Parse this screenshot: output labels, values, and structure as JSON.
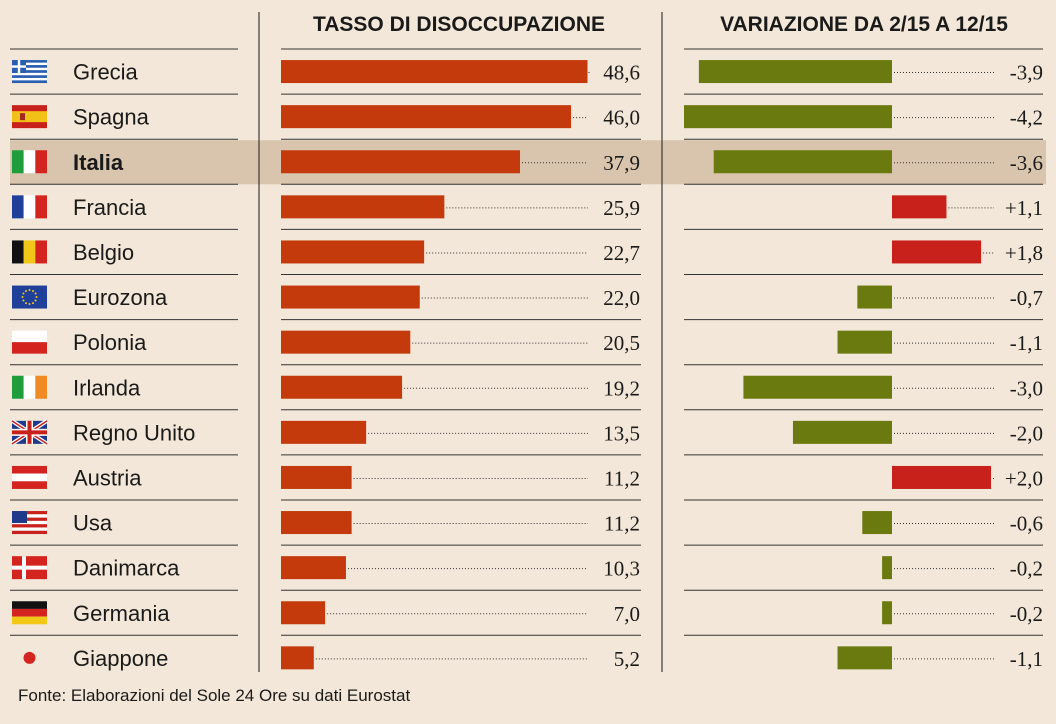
{
  "source": "Fonte: Elaborazioni del Sole 24 Ore su dati Eurostat",
  "colors": {
    "background": "#f3e7d9",
    "highlight_row": "#d9c5ad",
    "rate_bar": "#c43a0d",
    "change_negative": "#6b7a0f",
    "change_positive": "#c8211c"
  },
  "chart_data": [
    {
      "type": "bar",
      "title": "TASSO DI DISOCCUPAZIONE",
      "categories": [
        "Grecia",
        "Spagna",
        "Italia",
        "Francia",
        "Belgio",
        "Eurozona",
        "Polonia",
        "Irlanda",
        "Regno Unito",
        "Austria",
        "Usa",
        "Danimarca",
        "Germania",
        "Giappone"
      ],
      "values": [
        48.6,
        46.0,
        37.9,
        25.9,
        22.7,
        22.0,
        20.5,
        19.2,
        13.5,
        11.2,
        11.2,
        10.3,
        7.0,
        5.2
      ],
      "labels": [
        "48,6",
        "46,0",
        "37,9",
        "25,9",
        "22,7",
        "22,0",
        "20,5",
        "19,2",
        "13,5",
        "11,2",
        "11,2",
        "10,3",
        "7,0",
        "5,2"
      ],
      "highlight": "Italia",
      "xlim": [
        0,
        50
      ]
    },
    {
      "type": "bar",
      "title": "VARIAZIONE DA 2/15 A 12/15",
      "categories": [
        "Grecia",
        "Spagna",
        "Italia",
        "Francia",
        "Belgio",
        "Eurozona",
        "Polonia",
        "Irlanda",
        "Regno Unito",
        "Austria",
        "Usa",
        "Danimarca",
        "Germania",
        "Giappone"
      ],
      "values": [
        -3.9,
        -4.2,
        -3.6,
        1.1,
        1.8,
        -0.7,
        -1.1,
        -3.0,
        -2.0,
        2.0,
        -0.6,
        -0.2,
        -0.2,
        -1.1
      ],
      "labels": [
        "-3,9",
        "-4,2",
        "-3,6",
        "+1,1",
        "+1,8",
        "-0,7",
        "-1,1",
        "-3,0",
        "-2,0",
        "+2,0",
        "-0,6",
        "-0,2",
        "-0,2",
        "-1,1"
      ],
      "xlim": [
        -4.2,
        2.0
      ]
    }
  ],
  "flags": [
    "greece-flag",
    "spain-flag",
    "italy-flag",
    "france-flag",
    "belgium-flag",
    "eu-flag",
    "poland-flag",
    "ireland-flag",
    "uk-flag",
    "austria-flag",
    "usa-flag",
    "denmark-flag",
    "germany-flag",
    "japan-flag"
  ]
}
